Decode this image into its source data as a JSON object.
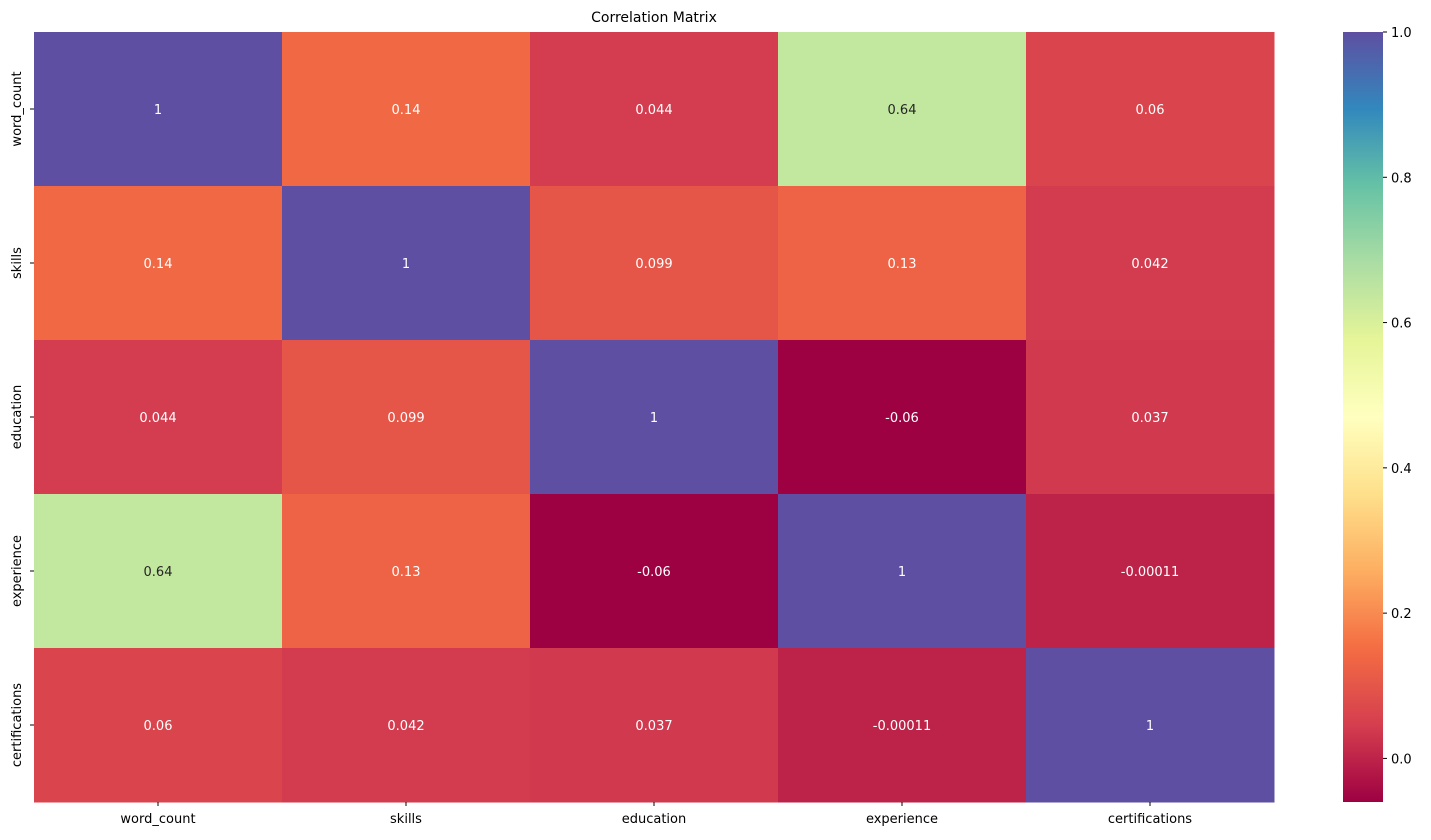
{
  "chart_data": {
    "type": "heatmap",
    "title": "Correlation Matrix",
    "xlabel": "",
    "ylabel": "",
    "colormap": "Spectral",
    "vmin": -0.06,
    "vmax": 1.0,
    "categories_x": [
      "word_count",
      "skills",
      "education",
      "experience",
      "certifications"
    ],
    "categories_y": [
      "word_count",
      "skills",
      "education",
      "experience",
      "certifications"
    ],
    "values": [
      [
        1,
        0.14,
        0.044,
        0.64,
        0.06
      ],
      [
        0.14,
        1,
        0.099,
        0.13,
        0.042
      ],
      [
        0.044,
        0.099,
        1,
        -0.06,
        0.037
      ],
      [
        0.64,
        0.13,
        -0.06,
        1,
        -0.00011
      ],
      [
        0.06,
        0.042,
        0.037,
        -0.00011,
        1
      ]
    ],
    "annotations": [
      [
        "1",
        "0.14",
        "0.044",
        "0.64",
        "0.06"
      ],
      [
        "0.14",
        "1",
        "0.099",
        "0.13",
        "0.042"
      ],
      [
        "0.044",
        "0.099",
        "1",
        "-0.06",
        "0.037"
      ],
      [
        "0.64",
        "0.13",
        "-0.06",
        "1",
        "-0.00011"
      ],
      [
        "0.06",
        "0.042",
        "0.037",
        "-0.00011",
        "1"
      ]
    ],
    "colorbar": {
      "ticks": [
        0.0,
        0.2,
        0.4,
        0.6,
        0.8,
        1.0
      ],
      "tick_labels": [
        "0.0",
        "0.2",
        "0.4",
        "0.6",
        "0.8",
        "1.0"
      ]
    }
  }
}
